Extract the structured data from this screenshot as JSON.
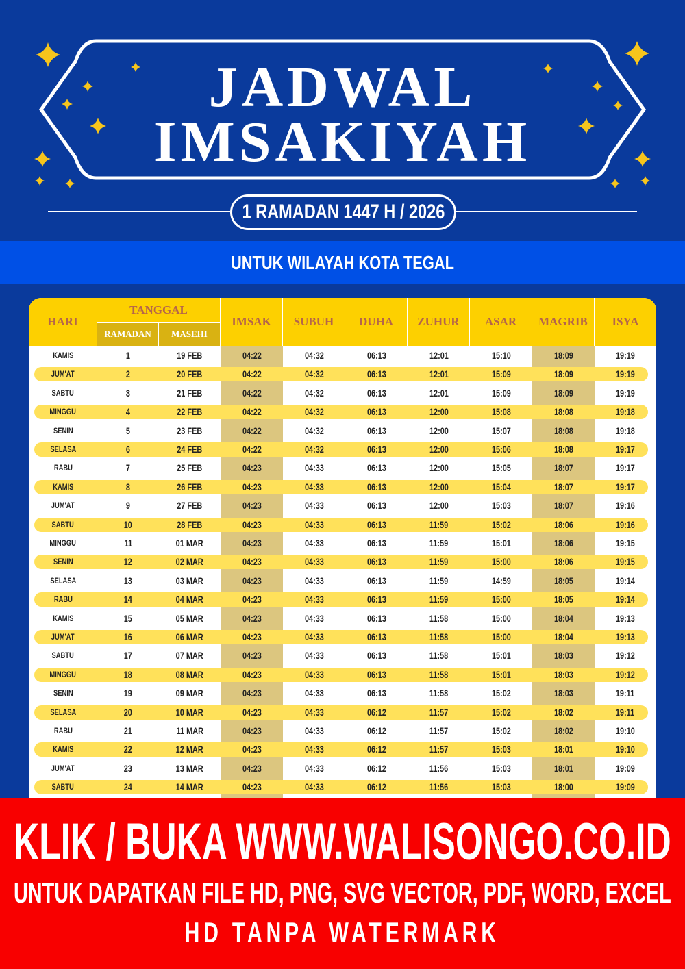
{
  "header": {
    "title_line1": "JADWAL",
    "title_line2": "IMSAKIYAH",
    "date_badge": "1 RAMADAN 1447 H / 2026",
    "region": "UNTUK WILAYAH KOTA TEGAL"
  },
  "colors": {
    "background": "#0a3a9c",
    "band": "#0050e6",
    "header_yellow": "#fdd000",
    "row_highlight": "#ffe15a",
    "column_highlight": "#dcc67f",
    "footer": "#f80000",
    "stars": "#f7c51c"
  },
  "table": {
    "headers": {
      "hari": "HARI",
      "tanggal": "TANGGAL",
      "ramadan": "RAMADAN",
      "masehi": "MASEHI",
      "imsak": "IMSAK",
      "subuh": "SUBUH",
      "duha": "DUHA",
      "zuhur": "ZUHUR",
      "asar": "ASAR",
      "magrib": "MAGRIB",
      "isya": "ISYA"
    },
    "rows": [
      [
        "KAMIS",
        "1",
        "19 FEB",
        "04:22",
        "04:32",
        "06:13",
        "12:01",
        "15:10",
        "18:09",
        "19:19"
      ],
      [
        "JUM'AT",
        "2",
        "20 FEB",
        "04:22",
        "04:32",
        "06:13",
        "12:01",
        "15:09",
        "18:09",
        "19:19"
      ],
      [
        "SABTU",
        "3",
        "21 FEB",
        "04:22",
        "04:32",
        "06:13",
        "12:01",
        "15:09",
        "18:09",
        "19:19"
      ],
      [
        "MINGGU",
        "4",
        "22 FEB",
        "04:22",
        "04:32",
        "06:13",
        "12:00",
        "15:08",
        "18:08",
        "19:18"
      ],
      [
        "SENIN",
        "5",
        "23 FEB",
        "04:22",
        "04:32",
        "06:13",
        "12:00",
        "15:07",
        "18:08",
        "19:18"
      ],
      [
        "SELASA",
        "6",
        "24 FEB",
        "04:22",
        "04:32",
        "06:13",
        "12:00",
        "15:06",
        "18:08",
        "19:17"
      ],
      [
        "RABU",
        "7",
        "25 FEB",
        "04:23",
        "04:33",
        "06:13",
        "12:00",
        "15:05",
        "18:07",
        "19:17"
      ],
      [
        "KAMIS",
        "8",
        "26 FEB",
        "04:23",
        "04:33",
        "06:13",
        "12:00",
        "15:04",
        "18:07",
        "19:17"
      ],
      [
        "JUM'AT",
        "9",
        "27 FEB",
        "04:23",
        "04:33",
        "06:13",
        "12:00",
        "15:03",
        "18:07",
        "19:16"
      ],
      [
        "SABTU",
        "10",
        "28 FEB",
        "04:23",
        "04:33",
        "06:13",
        "11:59",
        "15:02",
        "18:06",
        "19:16"
      ],
      [
        "MINGGU",
        "11",
        "01 MAR",
        "04:23",
        "04:33",
        "06:13",
        "11:59",
        "15:01",
        "18:06",
        "19:15"
      ],
      [
        "SENIN",
        "12",
        "02 MAR",
        "04:23",
        "04:33",
        "06:13",
        "11:59",
        "15:00",
        "18:06",
        "19:15"
      ],
      [
        "SELASA",
        "13",
        "03 MAR",
        "04:23",
        "04:33",
        "06:13",
        "11:59",
        "14:59",
        "18:05",
        "19:14"
      ],
      [
        "RABU",
        "14",
        "04 MAR",
        "04:23",
        "04:33",
        "06:13",
        "11:59",
        "15:00",
        "18:05",
        "19:14"
      ],
      [
        "KAMIS",
        "15",
        "05 MAR",
        "04:23",
        "04:33",
        "06:13",
        "11:58",
        "15:00",
        "18:04",
        "19:13"
      ],
      [
        "JUM'AT",
        "16",
        "06 MAR",
        "04:23",
        "04:33",
        "06:13",
        "11:58",
        "15:00",
        "18:04",
        "19:13"
      ],
      [
        "SABTU",
        "17",
        "07 MAR",
        "04:23",
        "04:33",
        "06:13",
        "11:58",
        "15:01",
        "18:03",
        "19:12"
      ],
      [
        "MINGGU",
        "18",
        "08 MAR",
        "04:23",
        "04:33",
        "06:13",
        "11:58",
        "15:01",
        "18:03",
        "19:12"
      ],
      [
        "SENIN",
        "19",
        "09 MAR",
        "04:23",
        "04:33",
        "06:13",
        "11:58",
        "15:02",
        "18:03",
        "19:11"
      ],
      [
        "SELASA",
        "20",
        "10 MAR",
        "04:23",
        "04:33",
        "06:12",
        "11:57",
        "15:02",
        "18:02",
        "19:11"
      ],
      [
        "RABU",
        "21",
        "11 MAR",
        "04:23",
        "04:33",
        "06:12",
        "11:57",
        "15:02",
        "18:02",
        "19:10"
      ],
      [
        "KAMIS",
        "22",
        "12 MAR",
        "04:23",
        "04:33",
        "06:12",
        "11:57",
        "15:03",
        "18:01",
        "19:10"
      ],
      [
        "JUM'AT",
        "23",
        "13 MAR",
        "04:23",
        "04:33",
        "06:12",
        "11:56",
        "15:03",
        "18:01",
        "19:09"
      ],
      [
        "SABTU",
        "24",
        "14 MAR",
        "04:23",
        "04:33",
        "06:12",
        "11:56",
        "15:03",
        "18:00",
        "19:09"
      ]
    ]
  },
  "footer": {
    "line1": "KLIK / BUKA WWW.WALISONGO.CO.ID",
    "line2": "UNTUK DAPATKAN FILE HD, PNG, SVG VECTOR, PDF, WORD, EXCEL",
    "line3": "HD TANPA WATERMARK"
  }
}
